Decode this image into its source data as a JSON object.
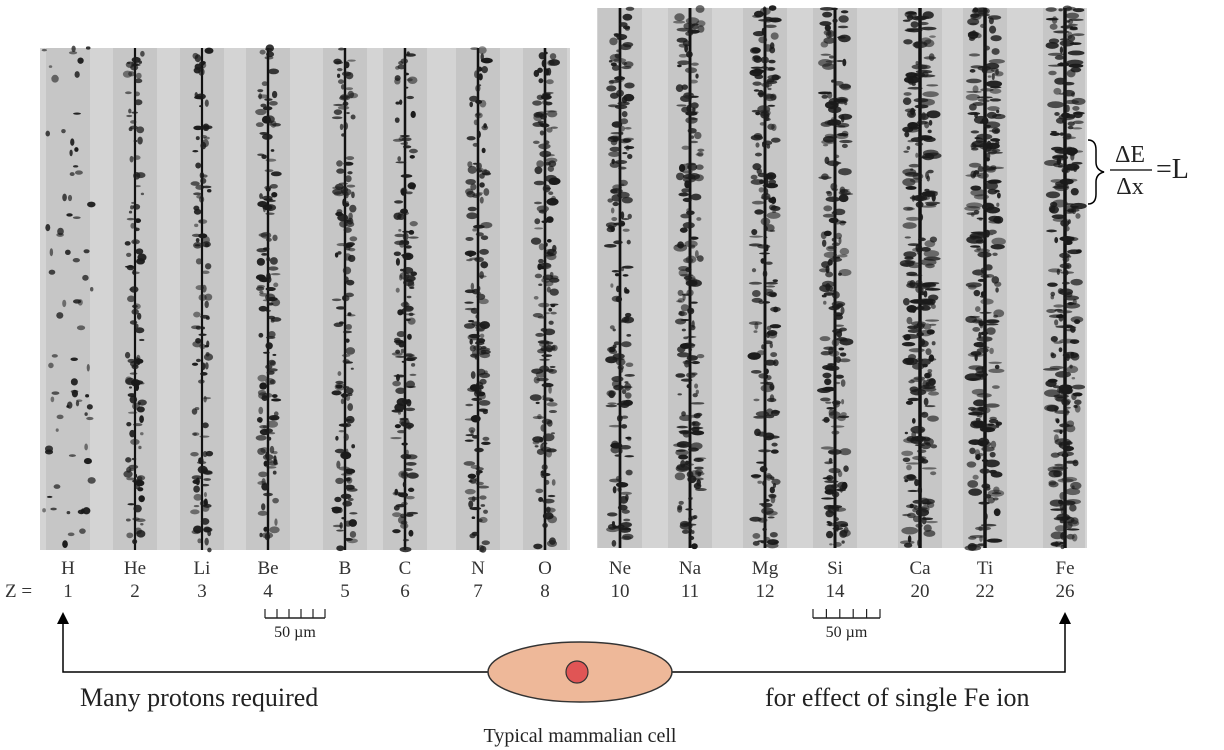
{
  "panels": [
    {
      "tracks": [
        {
          "element": "H",
          "z": 1
        },
        {
          "element": "He",
          "z": 2
        },
        {
          "element": "Li",
          "z": 3
        },
        {
          "element": "Be",
          "z": 4
        },
        {
          "element": "B",
          "z": 5
        },
        {
          "element": "C",
          "z": 6
        },
        {
          "element": "N",
          "z": 7
        },
        {
          "element": "O",
          "z": 8
        }
      ],
      "scale_bar": "50 µm"
    },
    {
      "tracks": [
        {
          "element": "Ne",
          "z": 10
        },
        {
          "element": "Na",
          "z": 11
        },
        {
          "element": "Mg",
          "z": 12
        },
        {
          "element": "Si",
          "z": 14
        },
        {
          "element": "Ca",
          "z": 20
        },
        {
          "element": "Ti",
          "z": 22
        },
        {
          "element": "Fe",
          "z": 26
        }
      ],
      "scale_bar": "50 µm"
    }
  ],
  "z_label": "Z =",
  "formula": {
    "numerator": "ΔE",
    "denominator": "Δx",
    "rhs": "=L"
  },
  "captions": {
    "left": "Many protons required",
    "right": "for effect of single Fe ion",
    "cell": "Typical mammalian cell"
  }
}
